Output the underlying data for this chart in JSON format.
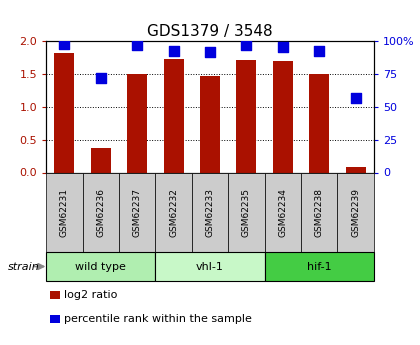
{
  "title": "GDS1379 / 3548",
  "samples": [
    "GSM62231",
    "GSM62236",
    "GSM62237",
    "GSM62232",
    "GSM62233",
    "GSM62235",
    "GSM62234",
    "GSM62238",
    "GSM62239"
  ],
  "log2_ratio": [
    1.82,
    0.37,
    1.5,
    1.73,
    1.47,
    1.72,
    1.7,
    1.51,
    0.08
  ],
  "percentile_rank": [
    98,
    72,
    97,
    93,
    92,
    97,
    96,
    93,
    57
  ],
  "groups": [
    {
      "label": "wild type",
      "start": 0,
      "end": 3,
      "color": "#b0eeb0"
    },
    {
      "label": "vhl-1",
      "start": 3,
      "end": 6,
      "color": "#c8f8c8"
    },
    {
      "label": "hif-1",
      "start": 6,
      "end": 9,
      "color": "#44cc44"
    }
  ],
  "bar_color": "#aa1100",
  "dot_color": "#0000dd",
  "ylim_left": [
    0,
    2
  ],
  "ylim_right": [
    0,
    100
  ],
  "yticks_left": [
    0,
    0.5,
    1.0,
    1.5,
    2.0
  ],
  "yticks_right": [
    0,
    25,
    50,
    75,
    100
  ],
  "yticklabels_right": [
    "0",
    "25",
    "50",
    "75",
    "100%"
  ],
  "grid_values": [
    0.5,
    1.0,
    1.5
  ],
  "legend_log2": "log2 ratio",
  "legend_pct": "percentile rank within the sample",
  "strain_label": "strain",
  "sample_box_color": "#cccccc",
  "bar_width": 0.55
}
